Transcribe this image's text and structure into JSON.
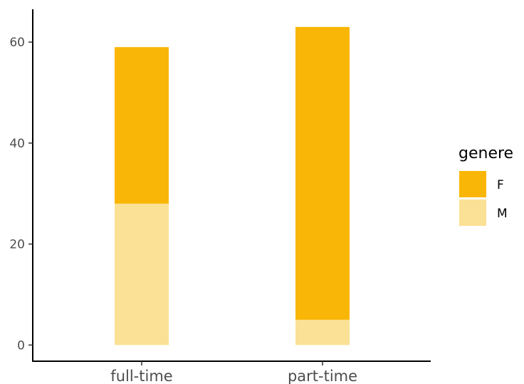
{
  "chart_data": {
    "type": "bar",
    "stacked": true,
    "categories": [
      "full-time",
      "part-time"
    ],
    "series": [
      {
        "name": "F",
        "values": [
          31,
          58
        ],
        "color": "#F9B606"
      },
      {
        "name": "M",
        "values": [
          28,
          5
        ],
        "color": "#FBE195"
      }
    ],
    "totals": [
      59,
      63
    ],
    "yticks": [
      0,
      20,
      40,
      60
    ],
    "ylim": [
      -3.2,
      66.5
    ],
    "title": "",
    "xlabel": "",
    "ylabel": "",
    "grid": false,
    "legend": {
      "title": "genere",
      "position": "right",
      "entries": [
        {
          "label": "F",
          "color": "#F9B606"
        },
        {
          "label": "M",
          "color": "#FBE195"
        }
      ]
    }
  }
}
